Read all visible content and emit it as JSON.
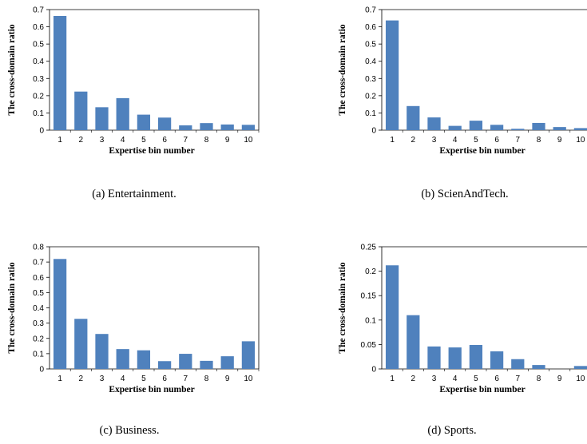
{
  "bar_color": "#4f81bd",
  "chart_data": [
    {
      "type": "bar",
      "caption": "(a)  Entertainment.",
      "categories": [
        "1",
        "2",
        "3",
        "4",
        "5",
        "6",
        "7",
        "8",
        "9",
        "10"
      ],
      "values": [
        0.663,
        0.224,
        0.133,
        0.186,
        0.09,
        0.073,
        0.028,
        0.041,
        0.033,
        0.031
      ],
      "xlabel": "Expertise bin number",
      "ylabel": "The cross-domain ratio",
      "ylim": [
        0,
        0.7
      ],
      "yticks": [
        "0",
        "0.1",
        "0.2",
        "0.3",
        "0.4",
        "0.5",
        "0.6",
        "0.7"
      ]
    },
    {
      "type": "bar",
      "caption": "(b)  ScienAndTech.",
      "categories": [
        "1",
        "2",
        "3",
        "4",
        "5",
        "6",
        "7",
        "8",
        "9",
        "10"
      ],
      "values": [
        0.637,
        0.14,
        0.074,
        0.025,
        0.055,
        0.031,
        0.008,
        0.042,
        0.018,
        0.012
      ],
      "xlabel": "Expertise bin number",
      "ylabel": "The cross-domain ratio",
      "ylim": [
        0,
        0.7
      ],
      "yticks": [
        "0",
        "0.1",
        "0.2",
        "0.3",
        "0.4",
        "0.5",
        "0.6",
        "0.7"
      ]
    },
    {
      "type": "bar",
      "caption": "(c)  Business.",
      "categories": [
        "1",
        "2",
        "3",
        "4",
        "5",
        "6",
        "7",
        "8",
        "9",
        "10"
      ],
      "values": [
        0.72,
        0.328,
        0.229,
        0.13,
        0.122,
        0.051,
        0.099,
        0.053,
        0.083,
        0.181
      ],
      "xlabel": "Expertise bin number",
      "ylabel": "The cross-domain ratio",
      "ylim": [
        0,
        0.8
      ],
      "yticks": [
        "0",
        "0.1",
        "0.2",
        "0.3",
        "0.4",
        "0.5",
        "0.6",
        "0.7",
        "0.8"
      ]
    },
    {
      "type": "bar",
      "caption": "(d)  Sports.",
      "categories": [
        "1",
        "2",
        "3",
        "4",
        "5",
        "6",
        "7",
        "8",
        "9",
        "10"
      ],
      "values": [
        0.212,
        0.11,
        0.046,
        0.044,
        0.049,
        0.036,
        0.02,
        0.008,
        0.0,
        0.006
      ],
      "xlabel": "Expertise bin number",
      "ylabel": "The cross-domain ratio",
      "ylim": [
        0,
        0.25
      ],
      "yticks": [
        "0",
        "0.05",
        "0.1",
        "0.15",
        "0.2",
        "0.25"
      ]
    }
  ]
}
